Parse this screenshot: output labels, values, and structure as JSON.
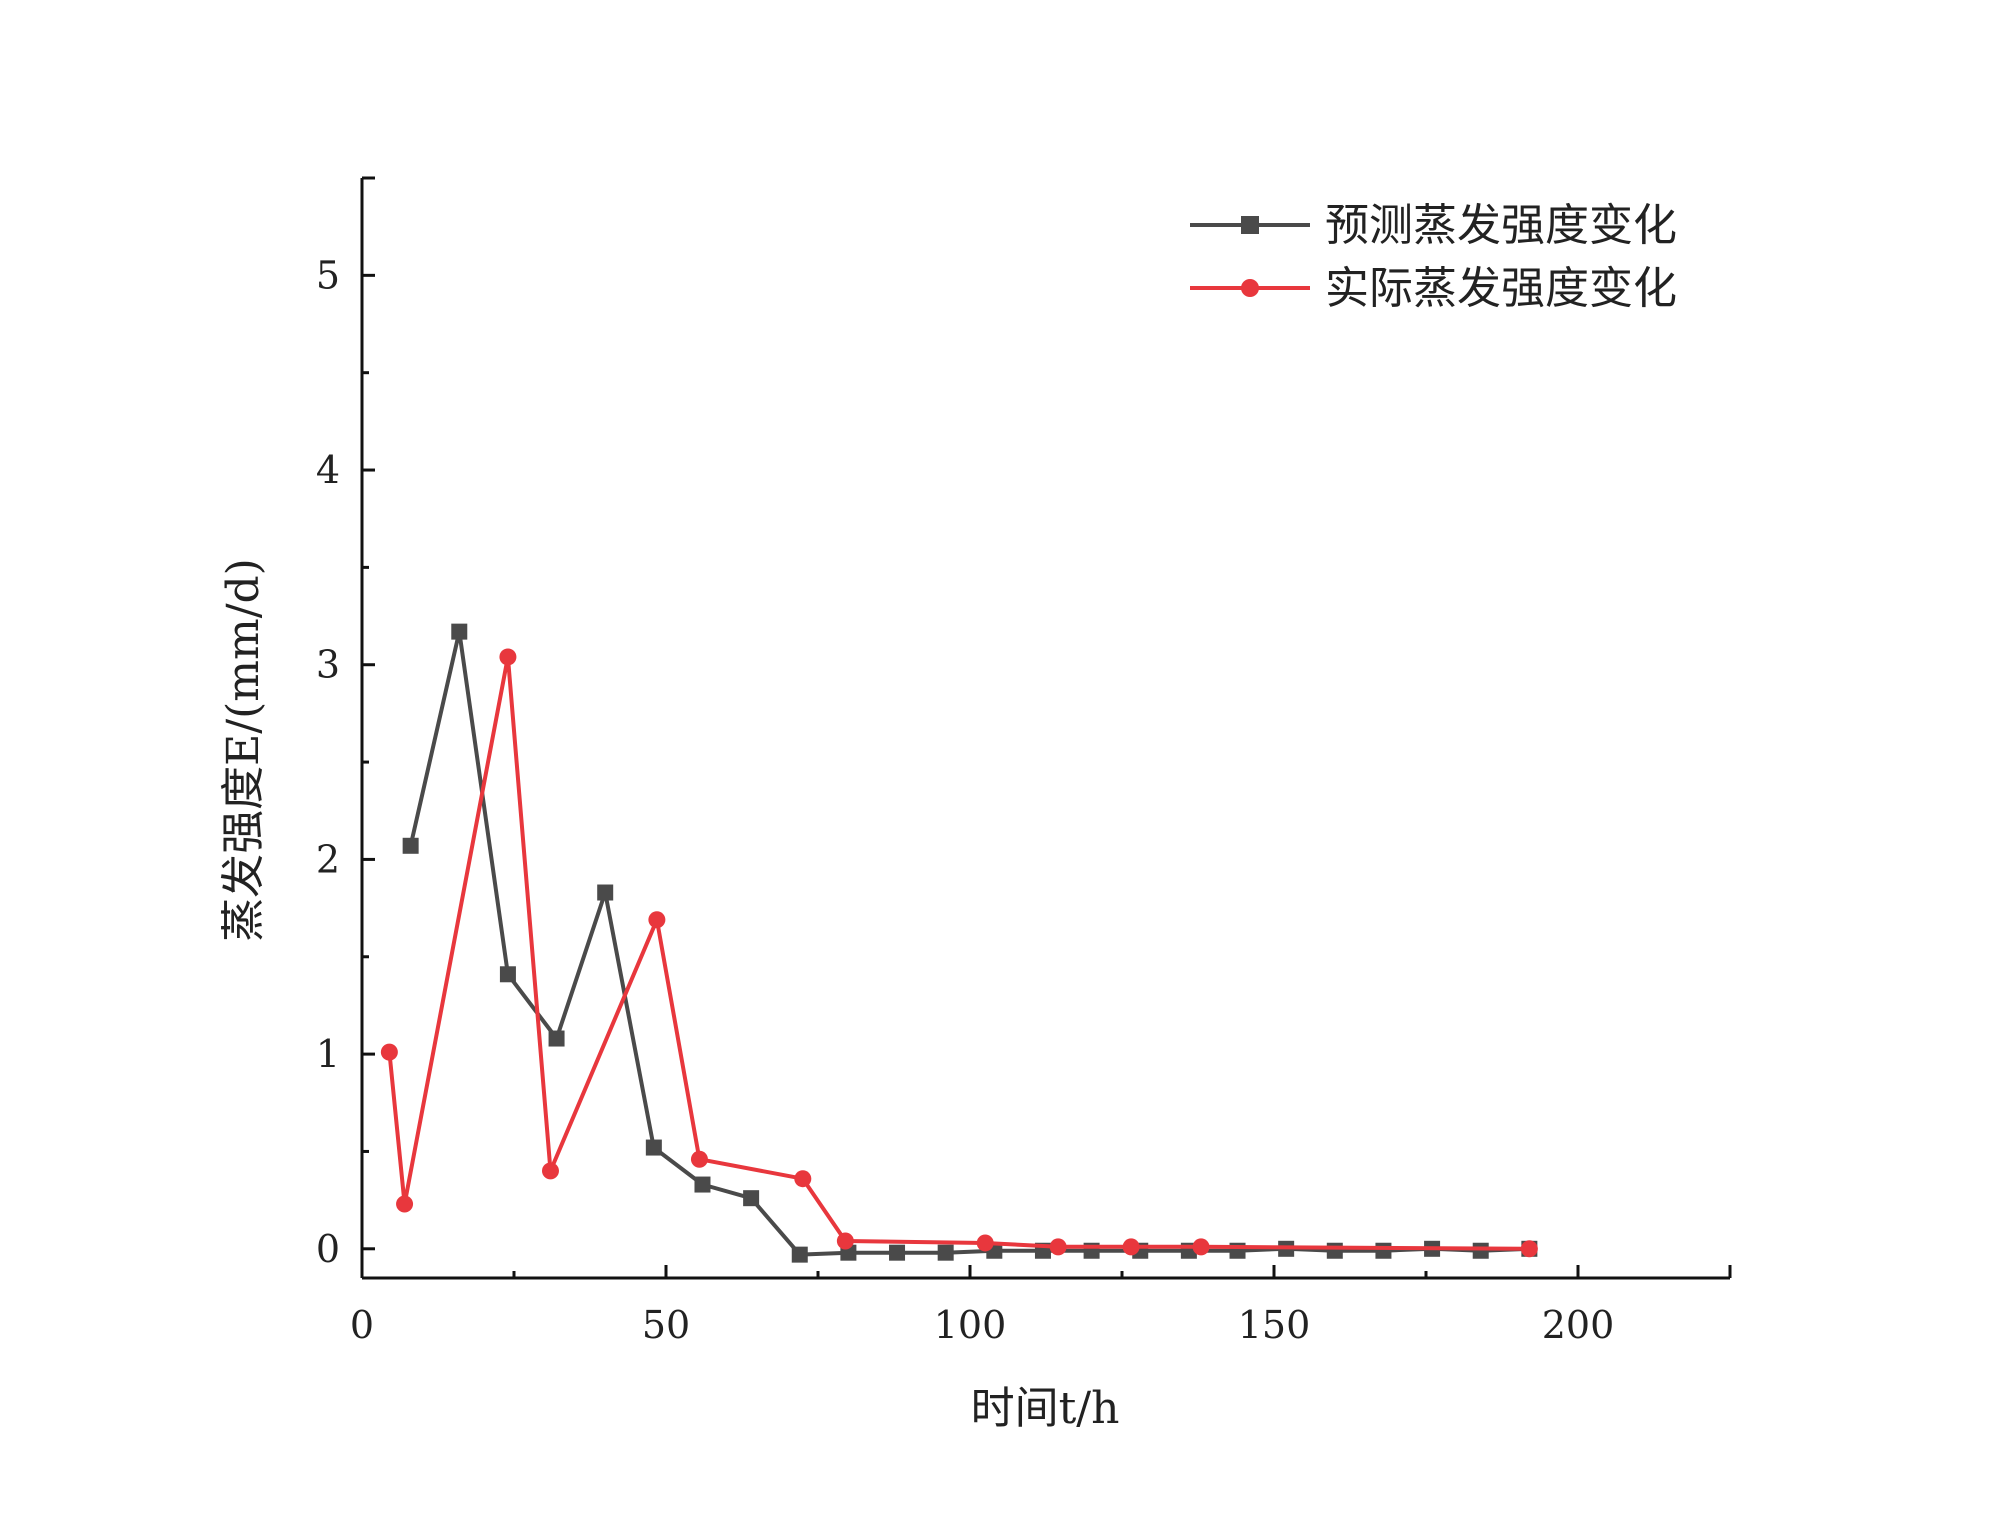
{
  "chart_data": {
    "type": "line",
    "xlabel": "时间t/h",
    "ylabel": "蒸发强度E/(mm/d)",
    "xlim": [
      0,
      225
    ],
    "ylim": [
      -0.15,
      5.5
    ],
    "xticks": [
      0,
      50,
      100,
      150,
      200
    ],
    "yticks": [
      0,
      1,
      2,
      3,
      4,
      5
    ],
    "grid": false,
    "legend": "top-right",
    "series": [
      {
        "name": "预测蒸发强度变化",
        "color": "#4a4a4a",
        "marker": "square",
        "x": [
          8,
          16,
          24,
          32,
          40,
          48,
          56,
          64,
          72,
          80,
          88,
          96,
          104,
          112,
          120,
          128,
          136,
          144,
          152,
          160,
          168,
          176,
          184,
          192
        ],
        "y": [
          2.07,
          3.17,
          1.41,
          1.08,
          1.83,
          0.52,
          0.33,
          0.26,
          -0.03,
          -0.02,
          -0.02,
          -0.02,
          -0.01,
          -0.01,
          -0.01,
          -0.01,
          -0.01,
          -0.01,
          0.0,
          -0.01,
          -0.01,
          0.0,
          -0.01,
          0.0
        ]
      },
      {
        "name": "实际蒸发强度变化",
        "color": "#e8373d",
        "marker": "circle",
        "x": [
          4.5,
          7,
          24,
          31,
          48.5,
          55.5,
          72.5,
          79.5,
          102.5,
          114.5,
          126.5,
          138,
          192
        ],
        "y": [
          1.01,
          0.23,
          3.04,
          0.4,
          1.69,
          0.46,
          0.36,
          0.04,
          0.03,
          0.01,
          0.01,
          0.01,
          0.0
        ]
      }
    ]
  }
}
